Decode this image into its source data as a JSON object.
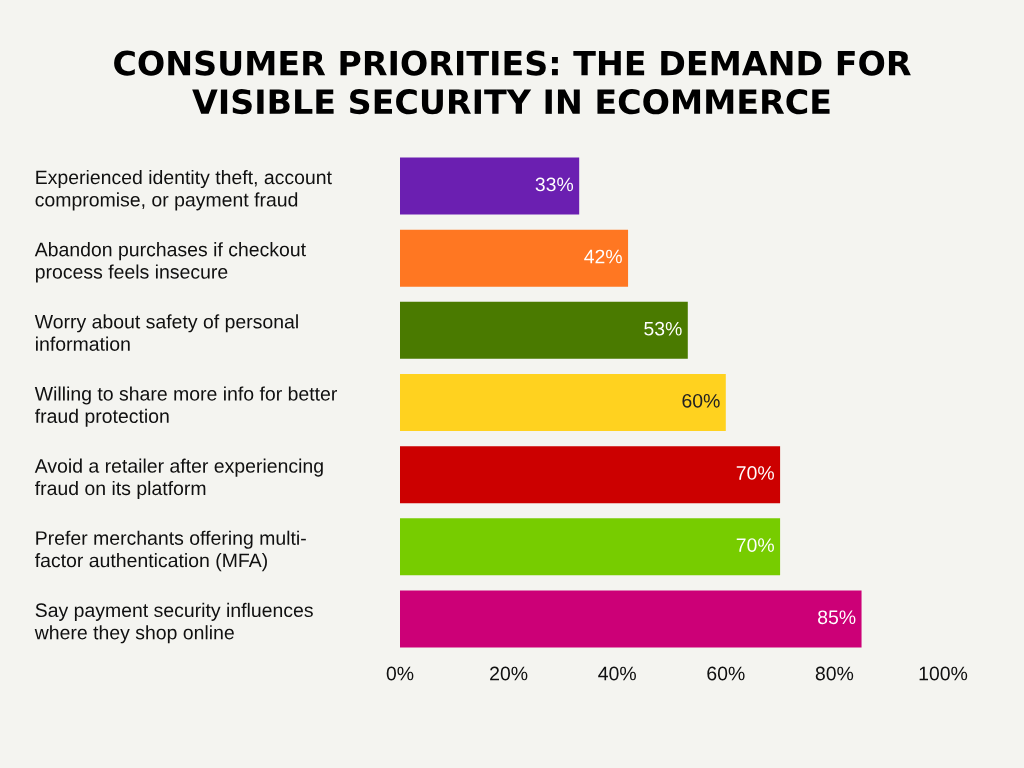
{
  "chart_data": {
    "type": "bar",
    "orientation": "horizontal",
    "title": "CONSUMER PRIORITIES: THE DEMAND FOR\nVISIBLE SECURITY IN ECOMMERCE",
    "categories": [
      "Experienced identity theft, account\ncompromise, or payment fraud",
      "Abandon purchases if checkout\nprocess feels insecure",
      "Worry about safety of personal\ninformation",
      "Willing to share more info for better\nfraud protection",
      "Avoid a retailer after experiencing\nfraud on its platform",
      "Prefer merchants offering multi-\nfactor authentication (MFA)",
      "Say payment security influences\nwhere they shop online"
    ],
    "values": [
      33,
      42,
      53,
      60,
      70,
      70,
      85
    ],
    "colors": [
      "#6b1fb1",
      "#ff7722",
      "#4a7a00",
      "#ffd21f",
      "#cc0000",
      "#77cc00",
      "#cc0077"
    ],
    "value_labels": [
      "33%",
      "42%",
      "53%",
      "60%",
      "70%",
      "70%",
      "85%"
    ],
    "xlim": [
      0,
      100
    ],
    "xticks": [
      {
        "value": 0,
        "label": "0%"
      },
      {
        "value": 20,
        "label": "20%"
      },
      {
        "value": 40,
        "label": "40%"
      },
      {
        "value": 60,
        "label": "60%"
      },
      {
        "value": 80,
        "label": "80%"
      },
      {
        "value": 100,
        "label": "100%"
      }
    ],
    "grid": false,
    "legend": false
  }
}
